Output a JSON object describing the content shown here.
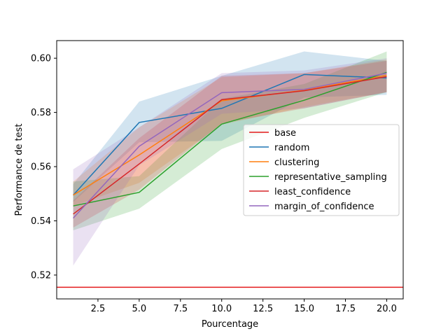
{
  "chart_data": {
    "type": "line",
    "xlabel": "Pourcentage",
    "ylabel": "Performance de test",
    "xlim": [
      0,
      21
    ],
    "ylim": [
      0.5112,
      0.6065
    ],
    "xticks": [
      2.5,
      5.0,
      7.5,
      10.0,
      12.5,
      15.0,
      17.5,
      20.0
    ],
    "xtick_labels": [
      "2.5",
      "5.0",
      "7.5",
      "10.0",
      "12.5",
      "15.0",
      "17.5",
      "20.0"
    ],
    "yticks": [
      0.52,
      0.54,
      0.56,
      0.58,
      0.6
    ],
    "ytick_labels": [
      "0.52",
      "0.54",
      "0.56",
      "0.58",
      "0.60"
    ],
    "grid": false,
    "legend_position": "center-right",
    "x": [
      1,
      5,
      10,
      15,
      20
    ],
    "hline": {
      "name": "base",
      "y": 0.5155,
      "color": "#e41a1c"
    },
    "series": [
      {
        "name": "random",
        "color": "#1f77b4",
        "values": [
          0.5495,
          0.5763,
          0.5815,
          0.594,
          0.5927
        ],
        "lower": [
          0.547,
          0.569,
          0.5695,
          0.5855,
          0.5865
        ],
        "upper": [
          0.5535,
          0.584,
          0.5935,
          0.6025,
          0.599
        ]
      },
      {
        "name": "clustering",
        "color": "#ff7f0e",
        "values": [
          0.5495,
          0.5643,
          0.5843,
          0.5882,
          0.5937
        ],
        "lower": [
          0.5455,
          0.554,
          0.5755,
          0.582,
          0.5875
        ],
        "upper": [
          0.5545,
          0.5745,
          0.593,
          0.5945,
          0.5995
        ]
      },
      {
        "name": "representative_sampling",
        "color": "#2ca02c",
        "values": [
          0.5455,
          0.5505,
          0.5757,
          0.5845,
          0.5948
        ],
        "lower": [
          0.5365,
          0.5445,
          0.5665,
          0.578,
          0.5875
        ],
        "upper": [
          0.5545,
          0.5565,
          0.585,
          0.5905,
          0.6025
        ]
      },
      {
        "name": "least_confidence",
        "color": "#d62728",
        "values": [
          0.5425,
          0.561,
          0.5847,
          0.588,
          0.5932
        ],
        "lower": [
          0.5375,
          0.5515,
          0.576,
          0.5815,
          0.5875
        ],
        "upper": [
          0.5475,
          0.5705,
          0.5935,
          0.5945,
          0.599
        ]
      },
      {
        "name": "margin_of_confidence",
        "color": "#9467bd",
        "values": [
          0.541,
          0.5675,
          0.5873,
          0.5885,
          0.5945
        ],
        "lower": [
          0.5235,
          0.5605,
          0.5795,
          0.5815,
          0.5875
        ],
        "upper": [
          0.559,
          0.5745,
          0.5945,
          0.5955,
          0.6
        ]
      }
    ]
  }
}
